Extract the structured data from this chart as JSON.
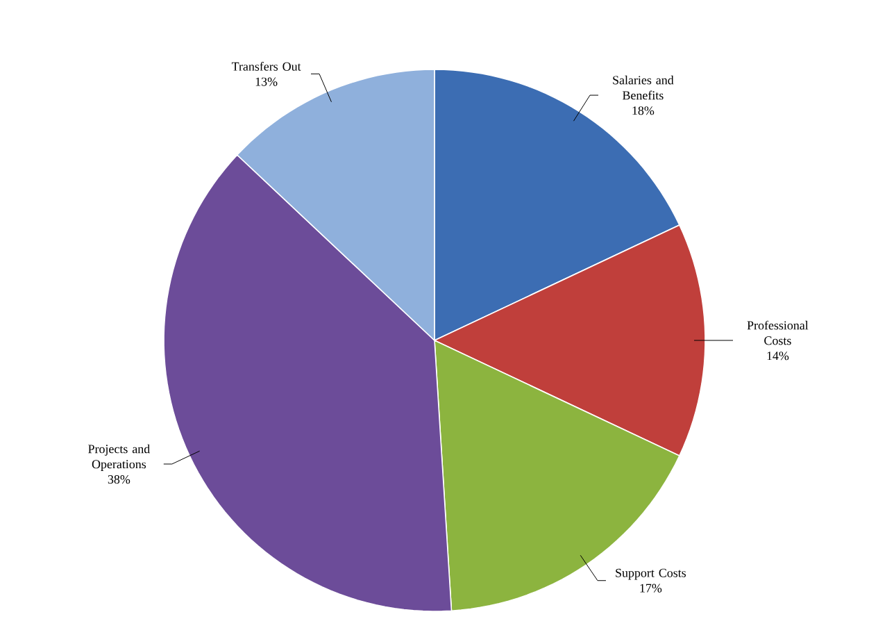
{
  "chart_data": {
    "type": "pie",
    "categories": [
      "Salaries and Benefits",
      "Professional Costs",
      "Support Costs",
      "Projects and Operations",
      "Transfers Out"
    ],
    "values": [
      18,
      14,
      17,
      38,
      13
    ],
    "value_labels": [
      "18%",
      "14%",
      "17%",
      "38%",
      "13%"
    ],
    "colors": [
      "#3c6db3",
      "#c03f3b",
      "#8cb43f",
      "#6c4c99",
      "#8fb0dc"
    ]
  }
}
